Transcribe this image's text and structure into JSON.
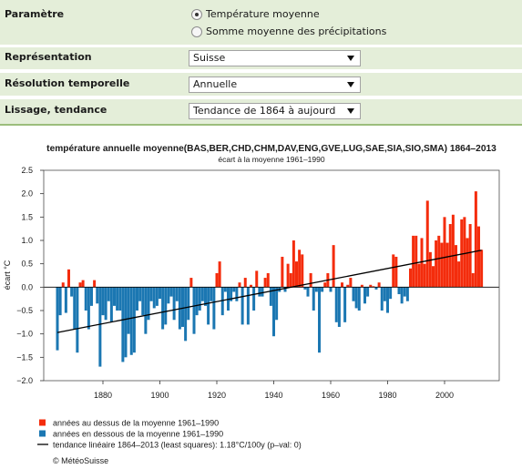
{
  "form": {
    "parameter": {
      "label": "Paramètre",
      "options": [
        {
          "label": "Température moyenne",
          "selected": true
        },
        {
          "label": "Somme moyenne des précipitations",
          "selected": false
        }
      ]
    },
    "representation": {
      "label": "Représentation",
      "value": "Suisse"
    },
    "resolution": {
      "label": "Résolution temporelle",
      "value": "Annuelle"
    },
    "smoothing": {
      "label": "Lissage, tendance",
      "value": "Tendance de 1864 à aujourd"
    },
    "dropdown_icon": "triangle-down-icon"
  },
  "colors": {
    "form_background": "#e4eed9",
    "form_border": "#9cbd7c"
  },
  "chart_data": {
    "type": "bar",
    "title": "température annuelle moyenne(BAS,BER,CHD,CHM,DAV,ENG,GVE,LUG,SAE,SIA,SIO,SMA) 1864–2013",
    "subtitle": "écart à la moyenne 1961–1990",
    "ylabel": "écart °C",
    "xlim": [
      1859.2,
      2019.2
    ],
    "ylim": [
      -2.0,
      2.5
    ],
    "xticks": [
      1880,
      1900,
      1920,
      1940,
      1960,
      1980,
      2000
    ],
    "xtick_labels": [
      "1880",
      "1900",
      "1920",
      "1940",
      "1960",
      "1980",
      "2000"
    ],
    "yticks": [
      2.5,
      2.0,
      1.5,
      1.0,
      0.5,
      0.0,
      -0.5,
      -1.0,
      -1.5,
      -2.0
    ],
    "ytick_labels": [
      "2.5",
      "2.0",
      "1.5",
      "1.0",
      "0.5",
      "0.0",
      "−0.5",
      "−1.0",
      "−1.5",
      "−2.0"
    ],
    "grid": false,
    "legend_position": "bottom-left",
    "x": [
      1864,
      1865,
      1866,
      1867,
      1868,
      1869,
      1870,
      1871,
      1872,
      1873,
      1874,
      1875,
      1876,
      1877,
      1878,
      1879,
      1880,
      1881,
      1882,
      1883,
      1884,
      1885,
      1886,
      1887,
      1888,
      1889,
      1890,
      1891,
      1892,
      1893,
      1894,
      1895,
      1896,
      1897,
      1898,
      1899,
      1900,
      1901,
      1902,
      1903,
      1904,
      1905,
      1906,
      1907,
      1908,
      1909,
      1910,
      1911,
      1912,
      1913,
      1914,
      1915,
      1916,
      1917,
      1918,
      1919,
      1920,
      1921,
      1922,
      1923,
      1924,
      1925,
      1926,
      1927,
      1928,
      1929,
      1930,
      1931,
      1932,
      1933,
      1934,
      1935,
      1936,
      1937,
      1938,
      1939,
      1940,
      1941,
      1942,
      1943,
      1944,
      1945,
      1946,
      1947,
      1948,
      1949,
      1950,
      1951,
      1952,
      1953,
      1954,
      1955,
      1956,
      1957,
      1958,
      1959,
      1960,
      1961,
      1962,
      1963,
      1964,
      1965,
      1966,
      1967,
      1968,
      1969,
      1970,
      1971,
      1972,
      1973,
      1974,
      1975,
      1976,
      1977,
      1978,
      1979,
      1980,
      1981,
      1982,
      1983,
      1984,
      1985,
      1986,
      1987,
      1988,
      1989,
      1990,
      1991,
      1992,
      1993,
      1994,
      1995,
      1996,
      1997,
      1998,
      1999,
      2000,
      2001,
      2002,
      2003,
      2004,
      2005,
      2006,
      2007,
      2008,
      2009,
      2010,
      2011,
      2012,
      2013
    ],
    "values": [
      -1.35,
      -0.6,
      0.1,
      -0.55,
      0.38,
      -0.2,
      -0.9,
      -1.4,
      0.1,
      0.15,
      -0.5,
      -0.9,
      -0.4,
      0.15,
      -0.35,
      -1.7,
      -0.6,
      -0.7,
      -0.3,
      -0.75,
      -0.4,
      -0.5,
      -0.5,
      -1.6,
      -1.5,
      -1.0,
      -1.45,
      -1.4,
      -0.5,
      -0.3,
      -0.6,
      -1.0,
      -0.7,
      -0.3,
      -0.45,
      -0.4,
      -0.25,
      -0.9,
      -0.8,
      -0.35,
      -0.2,
      -0.7,
      -0.3,
      -0.9,
      -0.85,
      -1.15,
      -0.7,
      0.2,
      -1.0,
      -0.6,
      -0.5,
      -0.3,
      -0.4,
      -0.8,
      -0.3,
      -0.9,
      0.3,
      0.55,
      -0.6,
      -0.1,
      -0.5,
      -0.3,
      -0.1,
      -0.3,
      0.1,
      -0.8,
      0.2,
      -0.8,
      0.05,
      -0.5,
      0.35,
      -0.2,
      -0.2,
      0.2,
      0.3,
      -0.4,
      -1.05,
      -0.7,
      -0.1,
      0.65,
      -0.1,
      0.5,
      0.3,
      1.0,
      0.55,
      0.8,
      0.7,
      -0.05,
      -0.2,
      0.3,
      -0.5,
      -0.1,
      -1.4,
      -0.1,
      0.1,
      0.3,
      -0.1,
      0.9,
      -0.75,
      -0.85,
      0.1,
      -0.75,
      0.05,
      0.2,
      -0.3,
      -0.45,
      -0.5,
      0.05,
      -0.35,
      -0.2,
      0.05,
      0.02,
      -0.05,
      0.1,
      -0.5,
      -0.3,
      -0.55,
      -0.25,
      0.7,
      0.65,
      -0.15,
      -0.35,
      -0.2,
      -0.3,
      0.4,
      1.1,
      1.1,
      0.5,
      1.05,
      0.5,
      1.85,
      0.75,
      0.45,
      1.0,
      1.1,
      0.95,
      1.5,
      0.95,
      1.35,
      1.55,
      0.9,
      0.55,
      1.45,
      1.5,
      1.05,
      1.35,
      0.3,
      2.05,
      1.3,
      0.8
    ],
    "legend": [
      {
        "label": "années au dessus de la moyenne 1961–1990",
        "color": "#f42c0c"
      },
      {
        "label": "années en dessous de la moyenne 1961–1990",
        "color": "#1b77b2"
      }
    ],
    "trend": {
      "label": "tendance linéaire 1864–2013 (least squares): 1.18°C/100y (p–val: 0)",
      "color": "#000000",
      "x": [
        1864,
        2013
      ],
      "y": [
        -0.97,
        0.79
      ]
    }
  },
  "credit": "© MétéoSuisse"
}
